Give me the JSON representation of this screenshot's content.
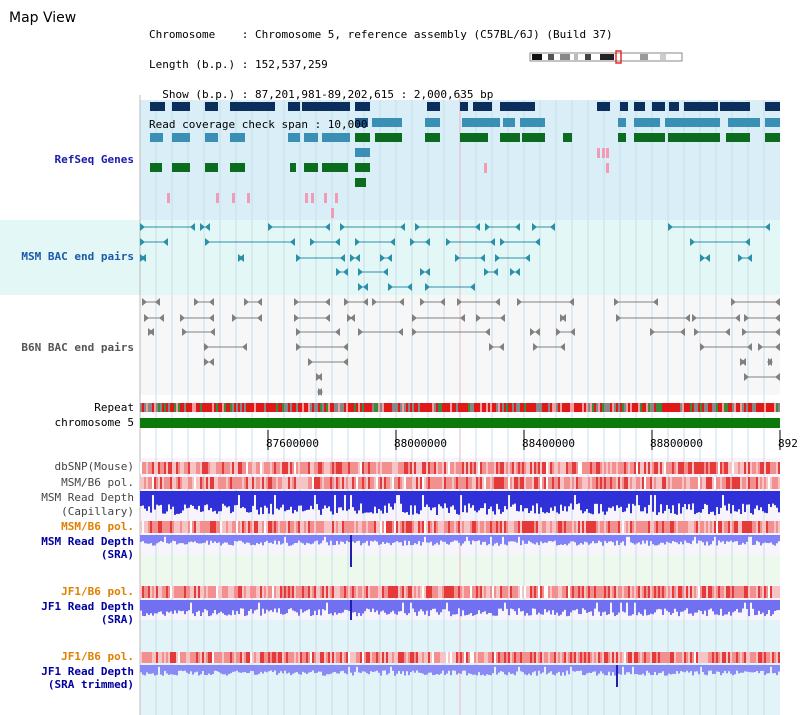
{
  "header": {
    "title": "Map View",
    "info_lines": [
      "Chromosome    : Chromosome 5, reference assembly (C57BL/6J) (Build 37)",
      "Length (b.p.) : 152,537,259",
      "  Show (b.p.) : 87,201,981-89,202,615 : 2,000,635 bp",
      "Read coverage check span : 10,000"
    ]
  },
  "tracks": {
    "refseq": "RefSeq Genes",
    "msm_bac": "MSM BAC end pairs",
    "b6n_bac": "B6N BAC end pairs",
    "repeat": "Repeat",
    "chromosome": "chromosome 5",
    "dbsnp": "dbSNP(Mouse)",
    "msm_b6_pol_1": "MSM/B6 pol.",
    "msm_read_depth_cap_1": "MSM Read Depth",
    "msm_read_depth_cap_2": "(Capillary)",
    "msm_b6_pol_2": "MSM/B6 pol.",
    "msm_read_depth_sra_1": "MSM Read Depth",
    "msm_read_depth_sra_2": "(SRA)",
    "jf1_b6_pol_1": "JF1/B6 pol.",
    "jf1_read_depth_sra_1": "JF1 Read Depth",
    "jf1_read_depth_sra_2": "(SRA)",
    "jf1_b6_pol_2": "JF1/B6 pol.",
    "jf1_read_depth_trim_1": "JF1 Read Depth",
    "jf1_read_depth_trim_2": "(SRA trimmed)"
  },
  "axis": {
    "ticks": [
      "87600000",
      "88000000",
      "88400000",
      "88800000",
      "892"
    ]
  },
  "colors": {
    "refseq_bg": "#d9eef7",
    "msm_bg": "#e4f7f7",
    "dark_navy": "#0b2e5c",
    "mid_blue": "#3a8fb5",
    "dark_green": "#0b6b1f",
    "pink": "#f29bb5",
    "teal": "#2a8fa8",
    "gray": "#808080",
    "chromosome_green": "#0b7a0b",
    "snp_red": "#e84040",
    "depth_blue": "#4040e0",
    "depth_light_blue": "#7f7fff",
    "orange_label": "#e08000",
    "blue_label": "#0000a0"
  }
}
